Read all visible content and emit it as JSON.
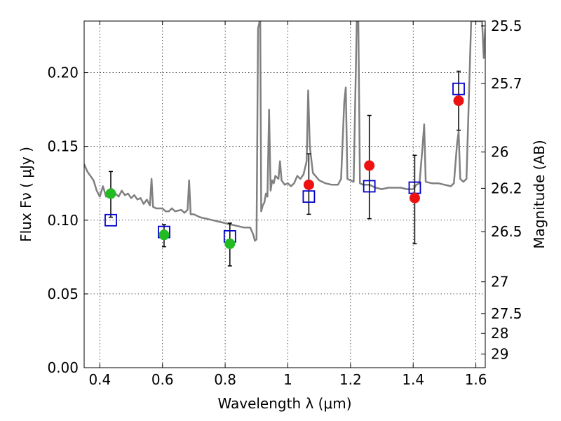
{
  "chart_data": {
    "type": "scatter",
    "xlabel": "Wavelength  λ (μm)",
    "ylabel": "Flux  Fν  ( μJy )",
    "ylabel_right": "Magnitude (AB)",
    "xlim": [
      0.35,
      1.63
    ],
    "ylim": [
      0.0,
      0.235
    ],
    "grid": true,
    "x_ticks": [
      0.4,
      0.6,
      0.8,
      1.0,
      1.2,
      1.4,
      1.6
    ],
    "x_tick_labels": [
      "0.4",
      "0.6",
      "0.8",
      "1",
      "1.2",
      "1.4",
      "1.6"
    ],
    "y_ticks": [
      0.0,
      0.05,
      0.1,
      0.15,
      0.2
    ],
    "y_tick_labels": [
      "0.00",
      "0.05",
      "0.10",
      "0.15",
      "0.20"
    ],
    "right_ticks": [
      {
        "label": "25.5",
        "flux": 0.2317
      },
      {
        "label": "25.7",
        "flux": 0.1927
      },
      {
        "label": "26",
        "flux": 0.1462
      },
      {
        "label": "26.2",
        "flux": 0.1216
      },
      {
        "label": "26.5",
        "flux": 0.0922
      },
      {
        "label": "27",
        "flux": 0.0582
      },
      {
        "label": "27.5",
        "flux": 0.0367
      },
      {
        "label": "28",
        "flux": 0.0232
      },
      {
        "label": "29",
        "flux": 0.0092
      }
    ],
    "series": [
      {
        "kind": "line",
        "color": "#808080",
        "points": [
          [
            0.35,
            0.138
          ],
          [
            0.36,
            0.133
          ],
          [
            0.37,
            0.13
          ],
          [
            0.38,
            0.127
          ],
          [
            0.39,
            0.12
          ],
          [
            0.4,
            0.116
          ],
          [
            0.41,
            0.123
          ],
          [
            0.42,
            0.116
          ],
          [
            0.43,
            0.118
          ],
          [
            0.44,
            0.121
          ],
          [
            0.45,
            0.118
          ],
          [
            0.46,
            0.116
          ],
          [
            0.47,
            0.12
          ],
          [
            0.48,
            0.117
          ],
          [
            0.49,
            0.118
          ],
          [
            0.5,
            0.115
          ],
          [
            0.51,
            0.117
          ],
          [
            0.52,
            0.114
          ],
          [
            0.53,
            0.115
          ],
          [
            0.54,
            0.111
          ],
          [
            0.55,
            0.114
          ],
          [
            0.56,
            0.11
          ],
          [
            0.565,
            0.128
          ],
          [
            0.57,
            0.109
          ],
          [
            0.58,
            0.108
          ],
          [
            0.6,
            0.108
          ],
          [
            0.61,
            0.106
          ],
          [
            0.62,
            0.106
          ],
          [
            0.63,
            0.108
          ],
          [
            0.64,
            0.106
          ],
          [
            0.66,
            0.107
          ],
          [
            0.67,
            0.105
          ],
          [
            0.68,
            0.107
          ],
          [
            0.685,
            0.127
          ],
          [
            0.69,
            0.104
          ],
          [
            0.7,
            0.104
          ],
          [
            0.72,
            0.102
          ],
          [
            0.74,
            0.101
          ],
          [
            0.76,
            0.1
          ],
          [
            0.78,
            0.099
          ],
          [
            0.8,
            0.098
          ],
          [
            0.82,
            0.097
          ],
          [
            0.84,
            0.096
          ],
          [
            0.86,
            0.095
          ],
          [
            0.88,
            0.095
          ],
          [
            0.89,
            0.09
          ],
          [
            0.895,
            0.086
          ],
          [
            0.9,
            0.087
          ],
          [
            0.905,
            0.23
          ],
          [
            0.91,
            0.235
          ],
          [
            0.912,
            0.235
          ],
          [
            0.915,
            0.106
          ],
          [
            0.92,
            0.11
          ],
          [
            0.925,
            0.112
          ],
          [
            0.93,
            0.118
          ],
          [
            0.935,
            0.116
          ],
          [
            0.94,
            0.175
          ],
          [
            0.945,
            0.12
          ],
          [
            0.95,
            0.127
          ],
          [
            0.955,
            0.125
          ],
          [
            0.96,
            0.13
          ],
          [
            0.97,
            0.128
          ],
          [
            0.975,
            0.14
          ],
          [
            0.98,
            0.127
          ],
          [
            0.99,
            0.124
          ],
          [
            1.0,
            0.125
          ],
          [
            1.01,
            0.123
          ],
          [
            1.02,
            0.125
          ],
          [
            1.03,
            0.13
          ],
          [
            1.04,
            0.128
          ],
          [
            1.05,
            0.131
          ],
          [
            1.06,
            0.14
          ],
          [
            1.065,
            0.188
          ],
          [
            1.07,
            0.15
          ],
          [
            1.08,
            0.132
          ],
          [
            1.1,
            0.127
          ],
          [
            1.12,
            0.125
          ],
          [
            1.14,
            0.124
          ],
          [
            1.16,
            0.124
          ],
          [
            1.17,
            0.128
          ],
          [
            1.18,
            0.18
          ],
          [
            1.185,
            0.19
          ],
          [
            1.19,
            0.128
          ],
          [
            1.2,
            0.127
          ],
          [
            1.21,
            0.126
          ],
          [
            1.22,
            0.235
          ],
          [
            1.225,
            0.235
          ],
          [
            1.23,
            0.125
          ],
          [
            1.24,
            0.124
          ],
          [
            1.26,
            0.124
          ],
          [
            1.28,
            0.122
          ],
          [
            1.3,
            0.121
          ],
          [
            1.32,
            0.122
          ],
          [
            1.34,
            0.122
          ],
          [
            1.36,
            0.122
          ],
          [
            1.38,
            0.121
          ],
          [
            1.4,
            0.121
          ],
          [
            1.41,
            0.124
          ],
          [
            1.42,
            0.125
          ],
          [
            1.43,
            0.15
          ],
          [
            1.435,
            0.165
          ],
          [
            1.44,
            0.126
          ],
          [
            1.46,
            0.125
          ],
          [
            1.48,
            0.125
          ],
          [
            1.5,
            0.124
          ],
          [
            1.52,
            0.123
          ],
          [
            1.53,
            0.125
          ],
          [
            1.54,
            0.152
          ],
          [
            1.545,
            0.16
          ],
          [
            1.55,
            0.128
          ],
          [
            1.56,
            0.126
          ],
          [
            1.57,
            0.128
          ],
          [
            1.58,
            0.2
          ],
          [
            1.585,
            0.235
          ],
          [
            1.6,
            0.235
          ],
          [
            1.62,
            0.235
          ],
          [
            1.625,
            0.21
          ],
          [
            1.63,
            0.23
          ]
        ]
      },
      {
        "kind": "errorbar",
        "color": "#000000",
        "points": [
          {
            "x": 0.435,
            "ymin": 0.102,
            "ymax": 0.133
          },
          {
            "x": 0.605,
            "ymin": 0.082,
            "ymax": 0.097
          },
          {
            "x": 0.815,
            "ymin": 0.069,
            "ymax": 0.098
          },
          {
            "x": 1.067,
            "ymin": 0.104,
            "ymax": 0.145
          },
          {
            "x": 1.26,
            "ymin": 0.101,
            "ymax": 0.171
          },
          {
            "x": 1.405,
            "ymin": 0.084,
            "ymax": 0.144
          },
          {
            "x": 1.545,
            "ymin": 0.161,
            "ymax": 0.201
          }
        ]
      },
      {
        "kind": "square",
        "color": "#0000cc",
        "points": [
          [
            0.435,
            0.1
          ],
          [
            0.605,
            0.092
          ],
          [
            0.815,
            0.089
          ],
          [
            1.067,
            0.116
          ],
          [
            1.26,
            0.123
          ],
          [
            1.405,
            0.122
          ],
          [
            1.545,
            0.189
          ]
        ]
      },
      {
        "kind": "circle",
        "color": "#22bb22",
        "points": [
          [
            0.435,
            0.118
          ],
          [
            0.605,
            0.09
          ],
          [
            0.815,
            0.084
          ]
        ]
      },
      {
        "kind": "circle",
        "color": "#ee1111",
        "points": [
          [
            1.067,
            0.124
          ],
          [
            1.26,
            0.137
          ],
          [
            1.405,
            0.115
          ],
          [
            1.545,
            0.181
          ]
        ]
      }
    ]
  }
}
